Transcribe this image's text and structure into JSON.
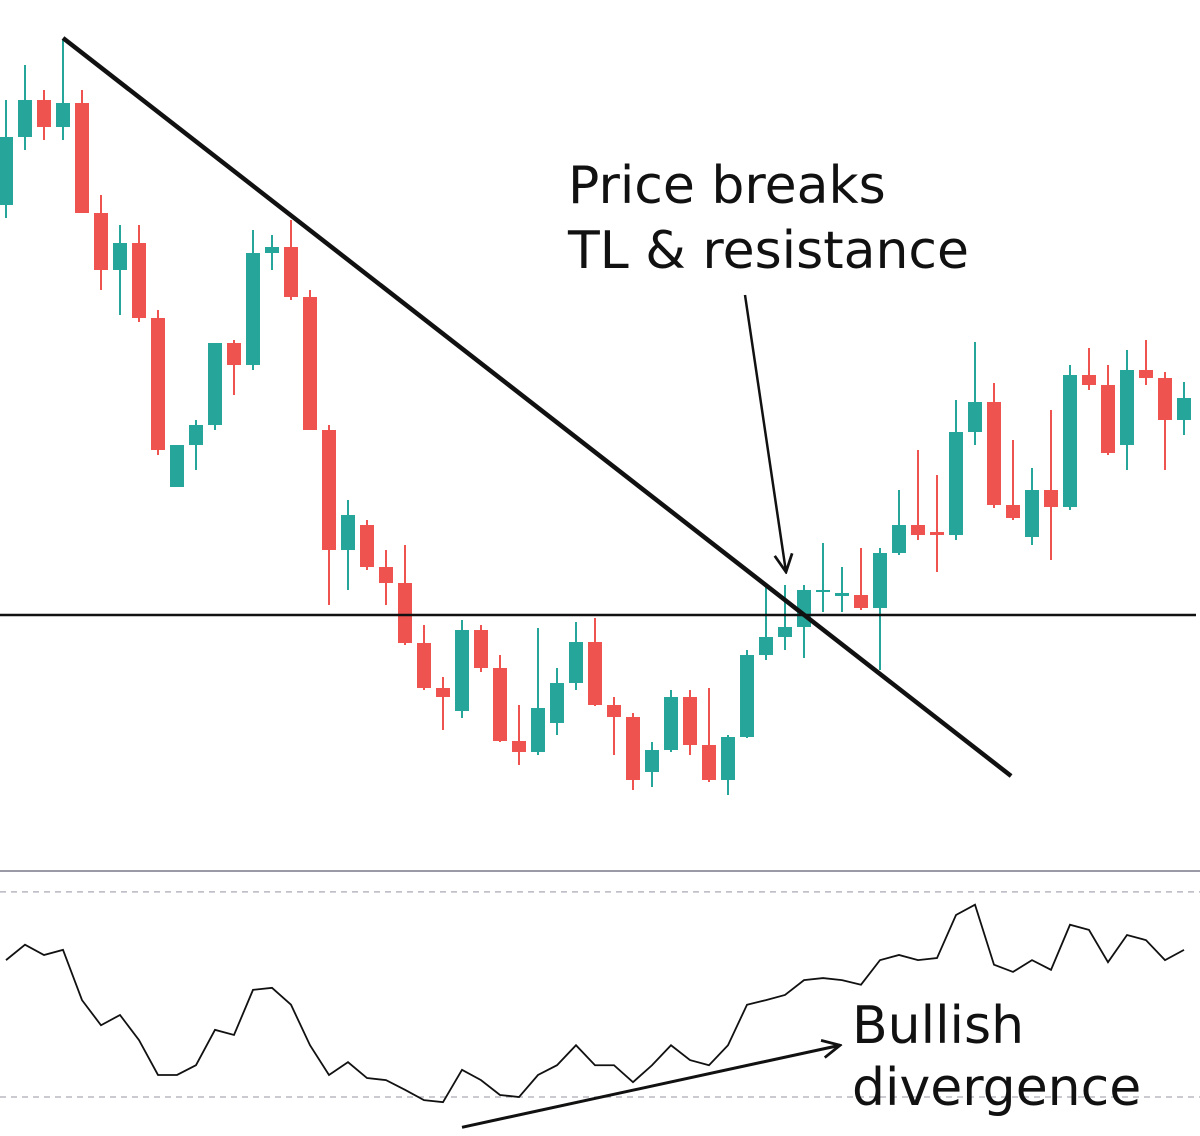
{
  "chart_data": [
    {
      "type": "candlestick",
      "up_color": "#26a69a",
      "down_color": "#ef5350",
      "ylim": [
        3,
        90
      ],
      "open": [
        69.5,
        76.3,
        80,
        77.3,
        79.7,
        68.7,
        63,
        65.7,
        58.2,
        41.3,
        45.5,
        47.5,
        55.7,
        53.5,
        64.7,
        65.3,
        60.3,
        47,
        35,
        37.5,
        33.3,
        31.7,
        25.7,
        21.2,
        18.9,
        27,
        23.2,
        15.9,
        14.8,
        17.7,
        21.7,
        25.8,
        19.5,
        18.3,
        12.8,
        15,
        20.3,
        15.5,
        12,
        16.3,
        24.5,
        26.3,
        27.3,
        30.9,
        30.4,
        30.5,
        29.2,
        34.7,
        37.5,
        36.8,
        36.5,
        46.8,
        49.8,
        39.5,
        36.3,
        41,
        39.3,
        52.5,
        51.5,
        45.5,
        53,
        52.2,
        48
      ],
      "high": [
        80,
        83.5,
        81,
        86,
        81,
        70.5,
        67.5,
        67.5,
        59,
        45.5,
        48,
        55.7,
        56,
        67,
        66.5,
        68,
        61,
        47.5,
        40,
        38,
        35,
        35.5,
        27.5,
        22.3,
        28,
        27.5,
        24.5,
        19.5,
        27.2,
        23.2,
        27.8,
        28.2,
        20.3,
        18.7,
        15.8,
        21,
        21,
        21.2,
        16.5,
        25,
        31.5,
        31.5,
        31.5,
        35.7,
        33.3,
        35.2,
        35.2,
        41,
        45,
        42.5,
        50,
        55.8,
        51.7,
        46,
        43.2,
        49,
        53.5,
        55.2,
        53.5,
        55,
        56,
        52.8,
        51.8
      ],
      "low": [
        68.2,
        75,
        76,
        76,
        68.7,
        61,
        58.5,
        57.8,
        44.5,
        41.3,
        43,
        47,
        50.5,
        53,
        63,
        60,
        47,
        29.5,
        31,
        33,
        29.5,
        25.5,
        21,
        17,
        18.2,
        22.8,
        15.8,
        13.5,
        14.5,
        16.5,
        21,
        19.4,
        14.5,
        11,
        11.3,
        14.8,
        14.5,
        11.8,
        10.5,
        16.2,
        24,
        25,
        24.2,
        28.8,
        28.8,
        29,
        23,
        34.5,
        36,
        32.8,
        36,
        45.5,
        39.2,
        38,
        35.5,
        34,
        39,
        51,
        44.5,
        43,
        51.5,
        43,
        46.5
      ],
      "close": [
        76.3,
        80,
        77.3,
        79.7,
        68.7,
        63,
        65.7,
        58.2,
        45,
        45.5,
        47.5,
        55.7,
        53.5,
        64.7,
        65.3,
        60.3,
        47,
        35,
        38.5,
        33.3,
        31.7,
        25.7,
        21.2,
        20.3,
        27,
        23.2,
        15.9,
        14.8,
        19.2,
        21.7,
        25.8,
        19.5,
        18.3,
        12,
        15,
        20.3,
        15.5,
        12,
        16.3,
        24.5,
        26.3,
        27.3,
        31,
        31,
        30.7,
        29.2,
        34.7,
        37.5,
        36.5,
        36.5,
        46.8,
        49.8,
        39.5,
        38.2,
        41,
        39.3,
        52.5,
        51.5,
        44.7,
        53,
        52.2,
        48,
        50.2
      ],
      "trendline": {
        "start": [
          3,
          86.2
        ],
        "end": [
          52.9,
          12.4
        ]
      },
      "resistance": 28.5,
      "annotation": [
        "Price breaks",
        "TL & resistance"
      ]
    },
    {
      "type": "line",
      "color": "#111111",
      "ylim": [
        22.4,
        73.3
      ],
      "levels": [
        70,
        30
      ],
      "values": [
        56.7,
        59.7,
        57.7,
        58.7,
        48.9,
        44,
        46,
        41.1,
        34.3,
        34.3,
        36.2,
        43.1,
        42.1,
        50.9,
        51.3,
        48,
        40.1,
        34.3,
        36.8,
        33.7,
        33.3,
        31.4,
        29.4,
        29,
        35.3,
        33.3,
        30.4,
        30,
        34.3,
        36.2,
        40.1,
        36.2,
        36.2,
        32.9,
        36.2,
        40.1,
        37.2,
        36.2,
        40.1,
        48,
        48.9,
        49.9,
        52.8,
        53.2,
        52.8,
        51.9,
        56.7,
        57.7,
        56.7,
        57.1,
        65.5,
        67.5,
        55.8,
        54.4,
        56.7,
        54.8,
        63.6,
        62.6,
        56.3,
        61.6,
        60.6,
        56.7,
        58.7
      ],
      "divergence": {
        "start": [
          24,
          24.1
        ],
        "end": [
          43.9,
          40.1
        ]
      },
      "annotation": [
        "Bullish",
        "divergence"
      ]
    }
  ]
}
